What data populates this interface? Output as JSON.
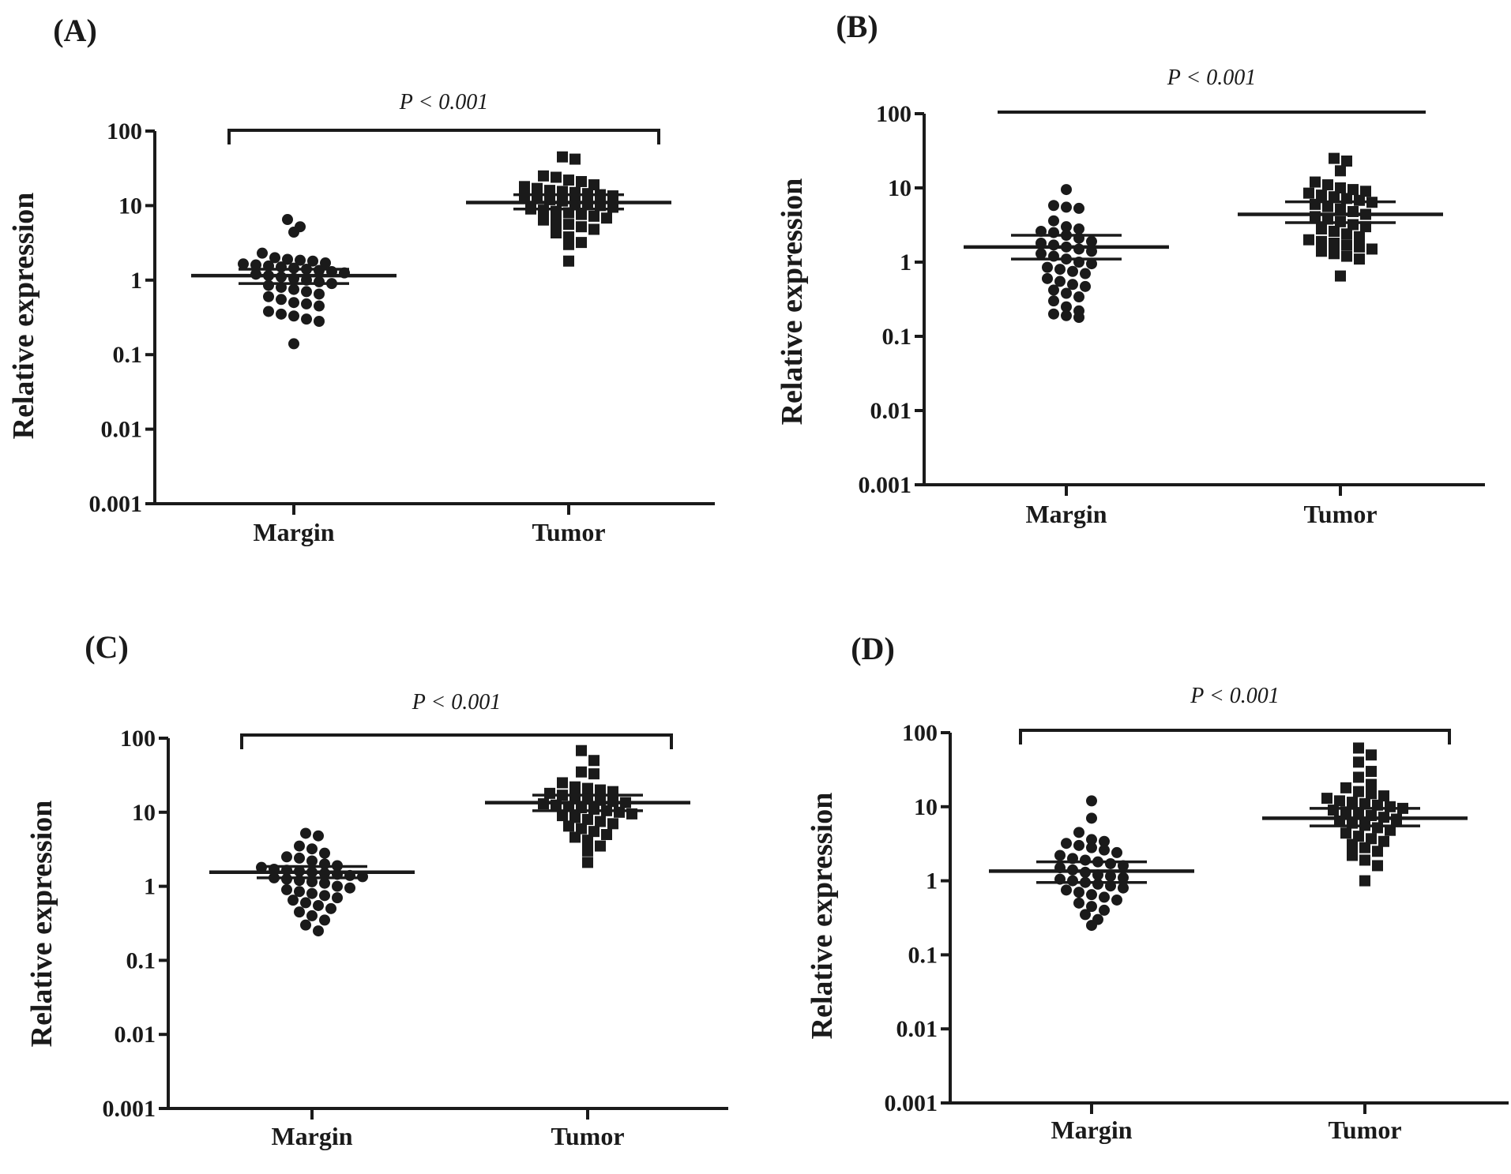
{
  "chart_data": [
    {
      "type": "scatter",
      "panel_label": "(A)",
      "ylabel": "Relative expression",
      "yscale": "log",
      "ylim": [
        0.001,
        100
      ],
      "yticks": [
        "0.001",
        "0.01",
        "0.1",
        "1",
        "10",
        "100"
      ],
      "categories": [
        "Margin",
        "Tumor"
      ],
      "significance": "P < 0.001",
      "bracket_style": "ticks",
      "series": [
        {
          "name": "Margin",
          "marker": "circle",
          "mean": 1.15,
          "sem_low": 0.9,
          "sem_high": 1.4,
          "values": [
            6.5,
            5.2,
            4.4,
            2.3,
            2.0,
            1.9,
            1.85,
            1.8,
            1.7,
            1.65,
            1.6,
            1.55,
            1.5,
            1.45,
            1.4,
            1.35,
            1.3,
            1.25,
            1.2,
            1.15,
            1.1,
            1.05,
            1.0,
            0.95,
            0.9,
            0.85,
            0.8,
            0.75,
            0.7,
            0.65,
            0.6,
            0.55,
            0.5,
            0.48,
            0.45,
            0.38,
            0.35,
            0.33,
            0.3,
            0.28,
            0.14
          ]
        },
        {
          "name": "Tumor",
          "marker": "square",
          "mean": 11,
          "sem_low": 9,
          "sem_high": 14,
          "values": [
            45,
            42,
            25,
            24,
            22,
            21,
            19,
            18,
            17,
            16,
            15.5,
            15,
            14.5,
            14,
            13.5,
            13,
            12.5,
            12,
            11.5,
            11,
            10.5,
            10,
            9.5,
            9,
            8.7,
            8.4,
            8,
            7.6,
            7.2,
            6.8,
            6.4,
            6,
            5.6,
            5.2,
            4.8,
            4.3,
            3.8,
            3.2,
            3.0,
            1.8
          ]
        }
      ]
    },
    {
      "type": "scatter",
      "panel_label": "(B)",
      "ylabel": "Relative expression",
      "yscale": "log",
      "ylim": [
        0.001,
        100
      ],
      "yticks": [
        "0.001",
        "0.01",
        "0.1",
        "1",
        "10",
        "100"
      ],
      "categories": [
        "Margin",
        "Tumor"
      ],
      "significance": "P < 0.001",
      "bracket_style": "flat",
      "series": [
        {
          "name": "Margin",
          "marker": "circle",
          "mean": 1.6,
          "sem_low": 1.1,
          "sem_high": 2.3,
          "values": [
            9.5,
            5.8,
            5.5,
            5.3,
            3.6,
            3.0,
            2.8,
            2.6,
            2.5,
            2.3,
            2.1,
            1.9,
            1.8,
            1.7,
            1.6,
            1.5,
            1.4,
            1.3,
            1.2,
            1.1,
            1.0,
            0.95,
            0.85,
            0.8,
            0.75,
            0.7,
            0.6,
            0.55,
            0.5,
            0.47,
            0.42,
            0.38,
            0.34,
            0.3,
            0.25,
            0.22,
            0.2,
            0.19,
            0.18
          ]
        },
        {
          "name": "Tumor",
          "marker": "square",
          "mean": 4.4,
          "sem_low": 3.4,
          "sem_high": 6.5,
          "values": [
            25,
            23,
            17,
            12,
            11,
            10,
            9.5,
            9,
            8.5,
            8,
            7.6,
            7.2,
            6.8,
            6.4,
            6,
            5.6,
            5.2,
            4.8,
            4.4,
            4.1,
            3.8,
            3.5,
            3.2,
            3.0,
            2.8,
            2.6,
            2.4,
            2.2,
            2.0,
            1.9,
            1.8,
            1.7,
            1.6,
            1.5,
            1.4,
            1.3,
            1.2,
            1.1,
            0.65
          ]
        }
      ]
    },
    {
      "type": "scatter",
      "panel_label": "(C)",
      "ylabel": "Relative expression",
      "yscale": "log",
      "ylim": [
        0.001,
        100
      ],
      "yticks": [
        "0.001",
        "0.01",
        "0.1",
        "1",
        "10",
        "100"
      ],
      "categories": [
        "Margin",
        "Tumor"
      ],
      "significance": "P < 0.001",
      "bracket_style": "ticks",
      "series": [
        {
          "name": "Margin",
          "marker": "circle",
          "mean": 1.55,
          "sem_low": 1.3,
          "sem_high": 1.85,
          "values": [
            5.2,
            4.8,
            3.5,
            3.2,
            2.8,
            2.5,
            2.4,
            2.2,
            2.0,
            1.9,
            1.8,
            1.7,
            1.65,
            1.6,
            1.55,
            1.5,
            1.45,
            1.4,
            1.35,
            1.3,
            1.25,
            1.2,
            1.15,
            1.1,
            1.0,
            0.95,
            0.9,
            0.85,
            0.8,
            0.75,
            0.7,
            0.65,
            0.6,
            0.55,
            0.5,
            0.45,
            0.4,
            0.35,
            0.3,
            0.25
          ]
        },
        {
          "name": "Tumor",
          "marker": "square",
          "mean": 13.5,
          "sem_low": 10.5,
          "sem_high": 17,
          "values": [
            68,
            50,
            35,
            33,
            25,
            22,
            21,
            20,
            19,
            18,
            17,
            16,
            15,
            14.5,
            14,
            13.5,
            13,
            12.5,
            12,
            11.5,
            11,
            10.5,
            10,
            9.5,
            9,
            8.5,
            8,
            7.5,
            7,
            6.5,
            6,
            5.5,
            5,
            4.6,
            4.2,
            3.5,
            3.0,
            2.1
          ]
        }
      ]
    },
    {
      "type": "scatter",
      "panel_label": "(D)",
      "ylabel": "Relative expression",
      "yscale": "log",
      "ylim": [
        0.001,
        100
      ],
      "yticks": [
        "0.001",
        "0.01",
        "0.1",
        "1",
        "10",
        "100"
      ],
      "categories": [
        "Margin",
        "Tumor"
      ],
      "significance": "P < 0.001",
      "bracket_style": "ticks",
      "series": [
        {
          "name": "Margin",
          "marker": "circle",
          "mean": 1.35,
          "sem_low": 0.95,
          "sem_high": 1.8,
          "values": [
            12,
            7.0,
            4.5,
            3.6,
            3.4,
            3.2,
            3.0,
            2.8,
            2.6,
            2.4,
            2.2,
            2.0,
            1.9,
            1.8,
            1.7,
            1.6,
            1.5,
            1.4,
            1.3,
            1.2,
            1.15,
            1.1,
            1.05,
            1.0,
            0.95,
            0.9,
            0.85,
            0.8,
            0.75,
            0.7,
            0.65,
            0.6,
            0.55,
            0.5,
            0.45,
            0.4,
            0.35,
            0.3,
            0.25
          ]
        },
        {
          "name": "Tumor",
          "marker": "square",
          "mean": 7.0,
          "sem_low": 5.5,
          "sem_high": 9.5,
          "values": [
            62,
            50,
            40,
            30,
            25,
            20,
            18,
            16,
            15,
            14,
            13,
            12,
            11.5,
            11,
            10.5,
            10,
            9.5,
            9,
            8.5,
            8,
            7.6,
            7.2,
            6.8,
            6.4,
            6,
            5.6,
            5.2,
            4.8,
            4.4,
            4.0,
            3.7,
            3.4,
            3.1,
            2.8,
            2.5,
            2.2,
            1.9,
            1.6,
            1.0
          ]
        }
      ]
    }
  ]
}
